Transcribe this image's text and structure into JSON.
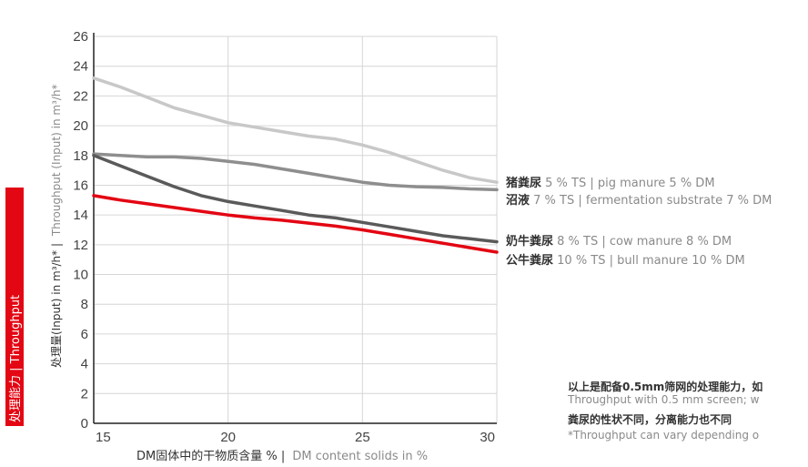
{
  "side_tab": {
    "text": "处理能力 | Throughput",
    "color": "#e30613"
  },
  "axis_texts": {
    "y_cn": "处理量(Input) in m³/h* |",
    "y_en": "Throughput (Input) in m³/h*",
    "x_cn": "DM固体中的干物质含量 % |",
    "x_en": "DM content solids in %"
  },
  "notes": {
    "line1": "以上是配备0.5mm筛网的处理能力，如",
    "line2": "Throughput with 0.5 mm screen; w",
    "line3": "粪尿的性状不同，分离能力也不同",
    "line4": "*Throughput can vary depending o"
  },
  "series_labels": [
    {
      "cn": "猪粪尿",
      "en": " 5 % TS | pig manure 5 % DM"
    },
    {
      "cn": "沼液",
      "en": " 7 % TS | fermentation substrate 7 % DM"
    },
    {
      "cn": "奶牛粪尿",
      "en": " 8 % TS | cow manure 8 % DM"
    },
    {
      "cn": "公牛粪尿",
      "en": " 10 % TS | bull manure 10 % DM"
    }
  ],
  "chart_data": {
    "type": "line",
    "xlim": [
      15,
      30
    ],
    "ylim": [
      0,
      26
    ],
    "x_ticks": [
      "15",
      "20",
      "25",
      "30"
    ],
    "y_ticks": [
      "0",
      "2",
      "4",
      "6",
      "8",
      "10",
      "12",
      "14",
      "16",
      "18",
      "20",
      "22",
      "24",
      "26"
    ],
    "grid": true,
    "x": [
      15,
      16,
      17,
      18,
      19,
      20,
      21,
      22,
      23,
      24,
      25,
      26,
      27,
      28,
      29,
      30
    ],
    "series": [
      {
        "color": "#c8c8c8",
        "values": [
          23.2,
          22.6,
          21.9,
          21.2,
          20.7,
          20.2,
          19.9,
          19.6,
          19.3,
          19.1,
          18.7,
          18.2,
          17.6,
          17.0,
          16.5,
          16.2
        ]
      },
      {
        "color": "#8e8e8e",
        "values": [
          18.1,
          18.0,
          17.9,
          17.9,
          17.8,
          17.6,
          17.4,
          17.1,
          16.8,
          16.5,
          16.2,
          16.0,
          15.9,
          15.85,
          15.75,
          15.7
        ]
      },
      {
        "color": "#5a5a5a",
        "values": [
          18.0,
          17.3,
          16.6,
          15.9,
          15.3,
          14.9,
          14.6,
          14.3,
          14.0,
          13.8,
          13.5,
          13.2,
          12.9,
          12.6,
          12.4,
          12.2
        ]
      },
      {
        "color": "#e30613",
        "values": [
          15.3,
          15.0,
          14.75,
          14.5,
          14.25,
          14.0,
          13.8,
          13.65,
          13.45,
          13.25,
          13.0,
          12.7,
          12.4,
          12.1,
          11.8,
          11.5
        ]
      }
    ]
  }
}
